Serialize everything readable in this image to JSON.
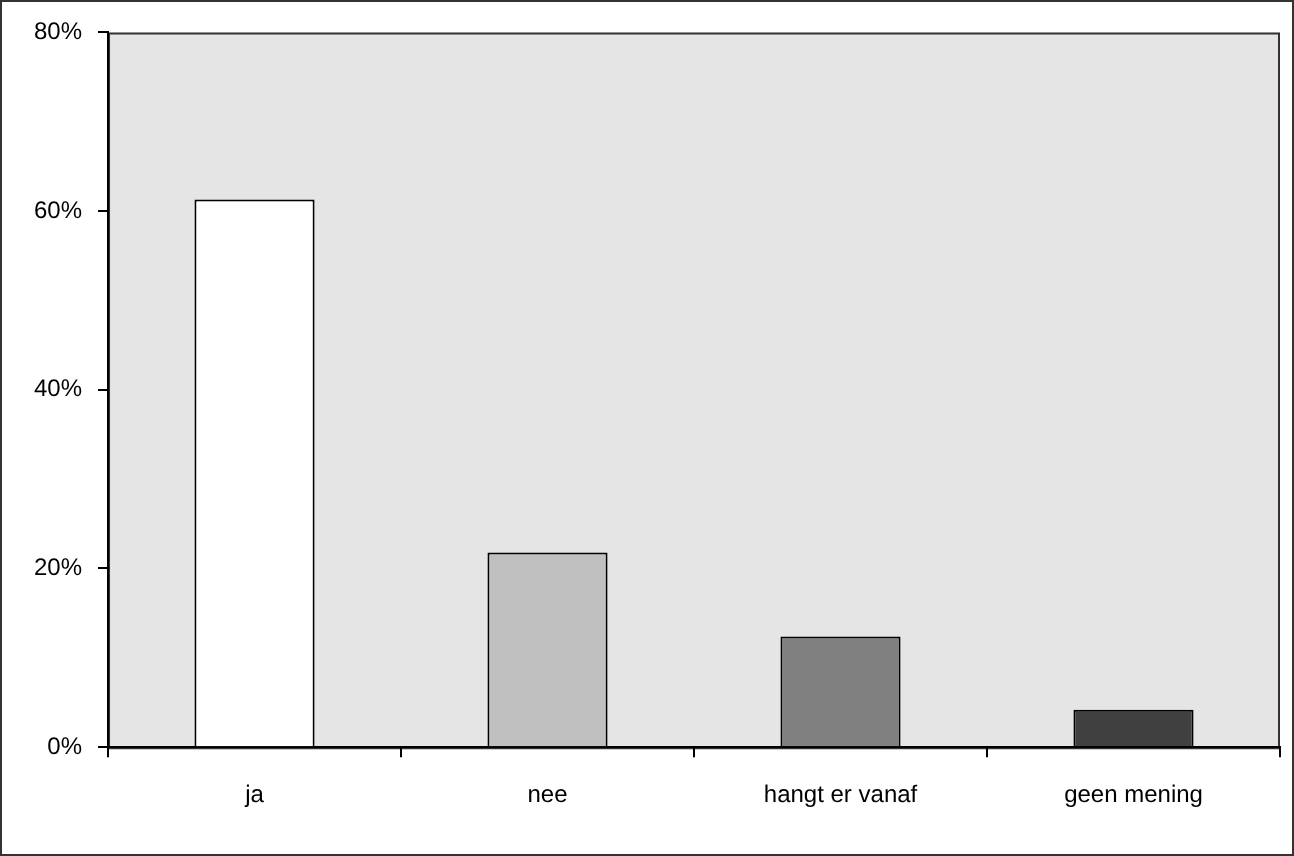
{
  "chart_data": {
    "type": "bar",
    "categories": [
      "ja",
      "nee",
      "hangt er vanaf",
      "geen mening"
    ],
    "series": [
      {
        "colors": [
          "#ffffff",
          "#c0c0c0",
          "#808080",
          "#404040"
        ],
        "values": [
          61.3,
          21.8,
          12.4,
          4.2
        ]
      }
    ],
    "ylim": [
      0,
      80
    ],
    "yticks": [
      {
        "value": 0,
        "label": "0%"
      },
      {
        "value": 20,
        "label": "20%"
      },
      {
        "value": 40,
        "label": "40%"
      },
      {
        "value": 60,
        "label": "60%"
      },
      {
        "value": 80,
        "label": "80%"
      }
    ],
    "grid": false,
    "legend": false
  }
}
